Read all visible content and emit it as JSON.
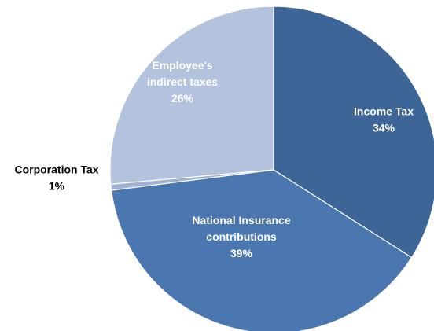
{
  "chart_data": {
    "type": "pie",
    "title": "",
    "slices": [
      {
        "name": "Income Tax",
        "lines": [
          "Income Tax"
        ],
        "pct_label": "34%",
        "value": 34,
        "color": "#3d6597",
        "label_position": "inside"
      },
      {
        "name": "National Insurance contributions",
        "lines": [
          "National Insurance",
          "contributions"
        ],
        "pct_label": "39%",
        "value": 39,
        "color": "#4b77b0",
        "label_position": "inside"
      },
      {
        "name": "Corporation Tax",
        "lines": [
          "Corporation Tax"
        ],
        "pct_label": "1%",
        "value": 0.6,
        "color": "#9fb2d3",
        "label_position": "outside-left"
      },
      {
        "name": "Employee's indirect taxes",
        "lines": [
          "Employee's",
          "indirect taxes"
        ],
        "pct_label": "26%",
        "value": 26.4,
        "color": "#b3c3de",
        "label_position": "inside"
      }
    ]
  }
}
